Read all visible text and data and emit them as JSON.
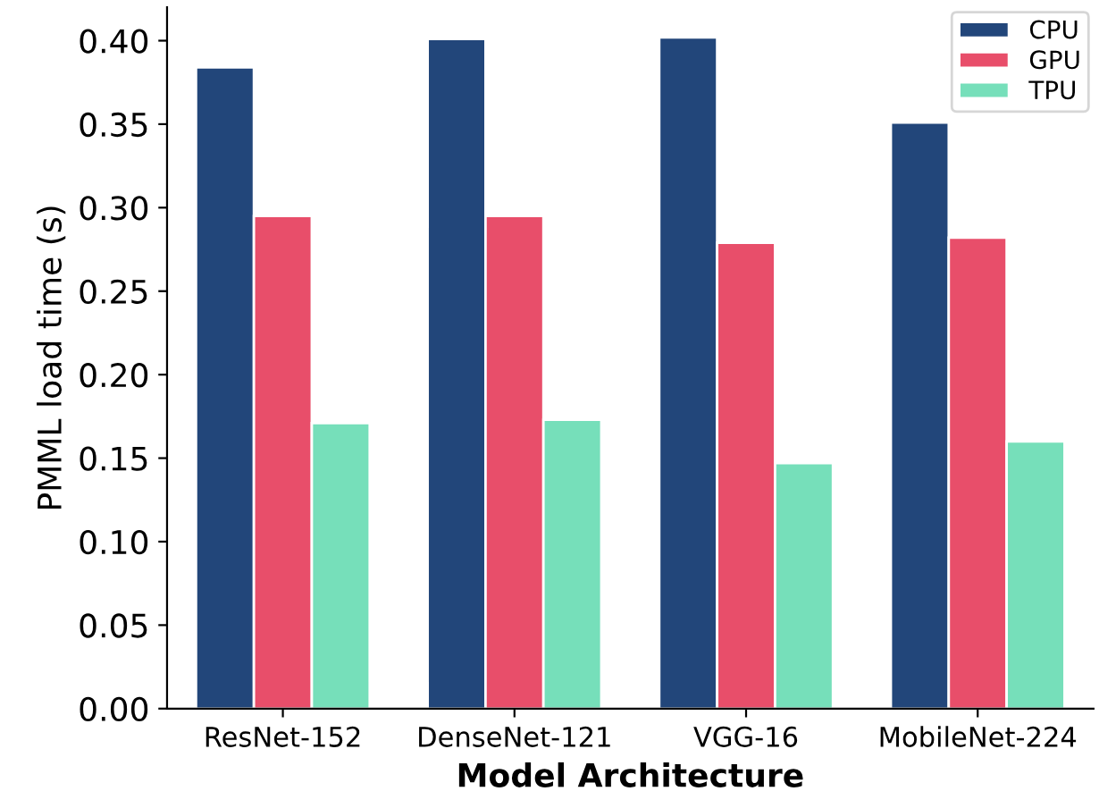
{
  "chart_data": {
    "type": "bar",
    "xlabel": "Model Architecture",
    "ylabel": "PMML load time (s)",
    "categories": [
      "ResNet-152",
      "DenseNet-121",
      "VGG-16",
      "MobileNet-224"
    ],
    "series": [
      {
        "name": "CPU",
        "color": "#22467a",
        "values": [
          0.384,
          0.401,
          0.402,
          0.351
        ]
      },
      {
        "name": "GPU",
        "color": "#e84e6a",
        "values": [
          0.295,
          0.295,
          0.279,
          0.282
        ]
      },
      {
        "name": "TPU",
        "color": "#76dfba",
        "values": [
          0.171,
          0.173,
          0.147,
          0.16
        ]
      }
    ],
    "ylim": [
      0,
      0.42
    ],
    "yticks": [
      {
        "value": 0,
        "label": "0.00"
      },
      {
        "value": 0.05,
        "label": "0.05"
      },
      {
        "value": 0.1,
        "label": "0.10"
      },
      {
        "value": 0.15,
        "label": "0.15"
      },
      {
        "value": 0.2,
        "label": "0.20"
      },
      {
        "value": 0.25,
        "label": "0.25"
      },
      {
        "value": 0.3,
        "label": "0.30"
      },
      {
        "value": 0.35,
        "label": "0.35"
      },
      {
        "value": 0.4,
        "label": "0.40"
      }
    ],
    "grid": false,
    "legend": "top right"
  }
}
